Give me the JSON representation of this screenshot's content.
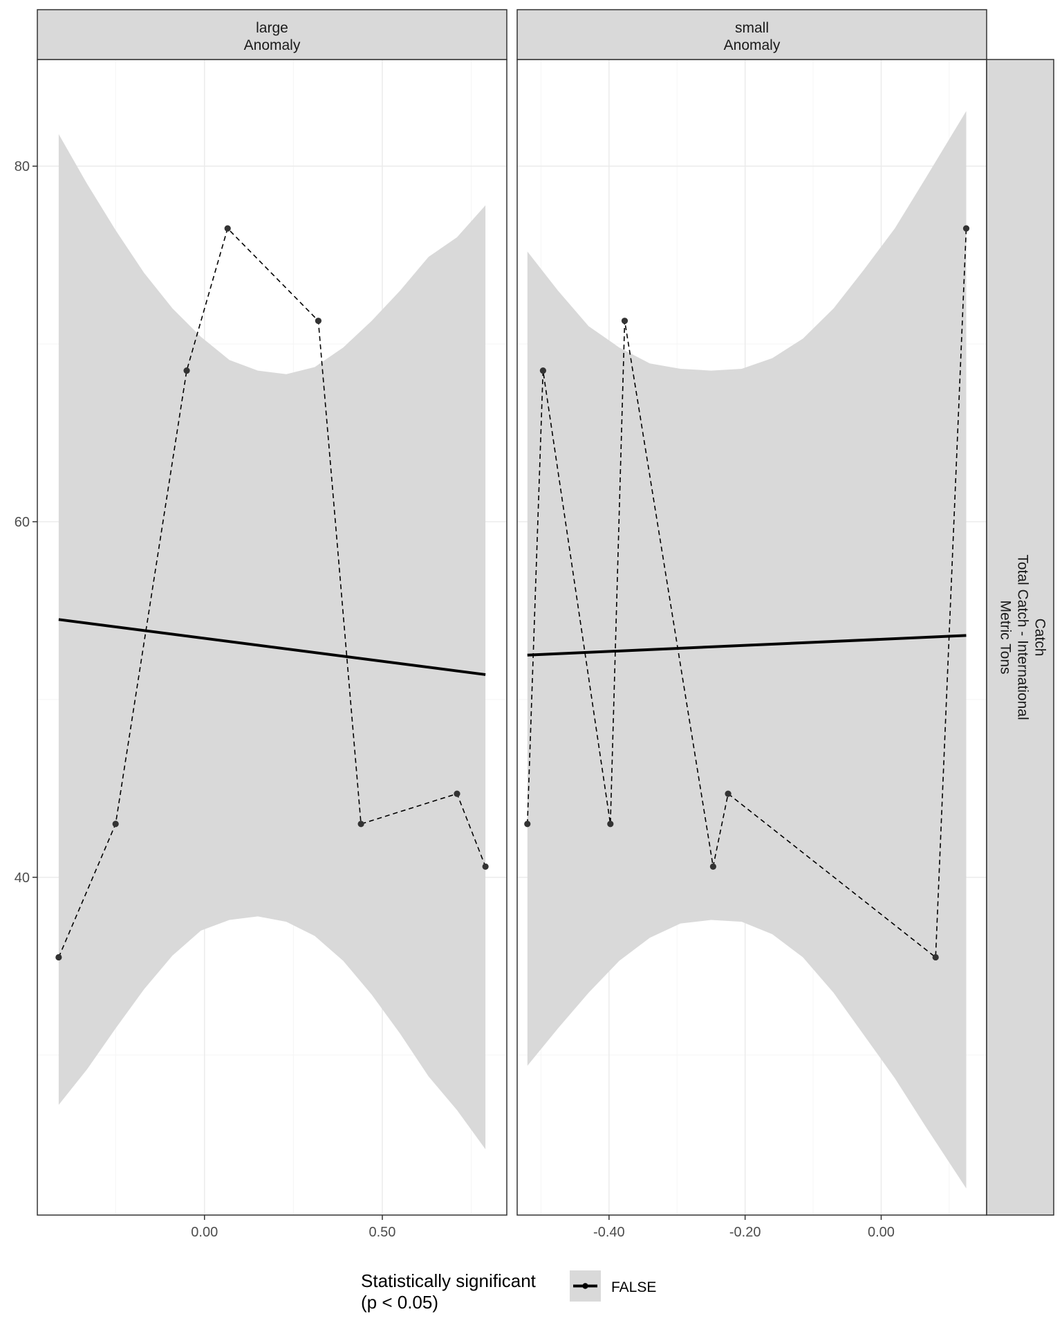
{
  "chart_data": {
    "type": "line",
    "facet_strip_label": "Catch\nTotal Catch - International\nMetric Tons",
    "y_ticks": [
      "40",
      "60",
      "80"
    ],
    "ylim": [
      21,
      86
    ],
    "panels": [
      {
        "strip_label": "large\nAnomaly",
        "xlim": [
          -0.47,
          0.85
        ],
        "x_ticks": [
          "0.00",
          "0.50"
        ],
        "x_tick_values": [
          0.0,
          0.5
        ],
        "points": [
          {
            "x": -0.41,
            "y": 35.5
          },
          {
            "x": -0.25,
            "y": 43.0
          },
          {
            "x": -0.05,
            "y": 68.5
          },
          {
            "x": 0.065,
            "y": 76.5
          },
          {
            "x": 0.32,
            "y": 71.3
          },
          {
            "x": 0.44,
            "y": 43.0
          },
          {
            "x": 0.71,
            "y": 44.7
          },
          {
            "x": 0.79,
            "y": 40.6
          }
        ],
        "fit": {
          "x": [
            -0.41,
            0.79
          ],
          "y": [
            54.5,
            51.4
          ]
        },
        "ci_upper": [
          {
            "x": -0.41,
            "y": 81.8
          },
          {
            "x": -0.33,
            "y": 79.0
          },
          {
            "x": -0.25,
            "y": 76.4
          },
          {
            "x": -0.17,
            "y": 74.0
          },
          {
            "x": -0.09,
            "y": 72.0
          },
          {
            "x": -0.01,
            "y": 70.4
          },
          {
            "x": 0.07,
            "y": 69.1
          },
          {
            "x": 0.15,
            "y": 68.5
          },
          {
            "x": 0.23,
            "y": 68.3
          },
          {
            "x": 0.31,
            "y": 68.7
          },
          {
            "x": 0.39,
            "y": 69.8
          },
          {
            "x": 0.47,
            "y": 71.3
          },
          {
            "x": 0.55,
            "y": 73.0
          },
          {
            "x": 0.63,
            "y": 74.9
          },
          {
            "x": 0.71,
            "y": 76.0
          },
          {
            "x": 0.79,
            "y": 77.8
          }
        ],
        "ci_lower": [
          {
            "x": -0.41,
            "y": 27.2
          },
          {
            "x": -0.33,
            "y": 29.2
          },
          {
            "x": -0.25,
            "y": 31.5
          },
          {
            "x": -0.17,
            "y": 33.7
          },
          {
            "x": -0.09,
            "y": 35.6
          },
          {
            "x": -0.01,
            "y": 37.0
          },
          {
            "x": 0.07,
            "y": 37.6
          },
          {
            "x": 0.15,
            "y": 37.8
          },
          {
            "x": 0.23,
            "y": 37.5
          },
          {
            "x": 0.31,
            "y": 36.7
          },
          {
            "x": 0.39,
            "y": 35.3
          },
          {
            "x": 0.47,
            "y": 33.4
          },
          {
            "x": 0.55,
            "y": 31.2
          },
          {
            "x": 0.63,
            "y": 28.8
          },
          {
            "x": 0.71,
            "y": 26.9
          },
          {
            "x": 0.79,
            "y": 24.7
          }
        ]
      },
      {
        "strip_label": "small\nAnomaly",
        "xlim": [
          -0.535,
          0.155
        ],
        "x_ticks": [
          "-0.40",
          "-0.20",
          "0.00"
        ],
        "x_tick_values": [
          -0.4,
          -0.2,
          0.0
        ],
        "points": [
          {
            "x": -0.52,
            "y": 43.0
          },
          {
            "x": -0.497,
            "y": 68.5
          },
          {
            "x": -0.398,
            "y": 43.0
          },
          {
            "x": -0.377,
            "y": 71.3
          },
          {
            "x": -0.247,
            "y": 40.6
          },
          {
            "x": -0.225,
            "y": 44.7
          },
          {
            "x": 0.08,
            "y": 35.5
          },
          {
            "x": 0.125,
            "y": 76.5
          }
        ],
        "fit": {
          "x": [
            -0.52,
            0.125
          ],
          "y": [
            52.5,
            53.6
          ]
        },
        "ci_upper": [
          {
            "x": -0.52,
            "y": 75.2
          },
          {
            "x": -0.475,
            "y": 73.0
          },
          {
            "x": -0.43,
            "y": 71.0
          },
          {
            "x": -0.385,
            "y": 69.8
          },
          {
            "x": -0.34,
            "y": 68.9
          },
          {
            "x": -0.295,
            "y": 68.6
          },
          {
            "x": -0.25,
            "y": 68.5
          },
          {
            "x": -0.205,
            "y": 68.6
          },
          {
            "x": -0.16,
            "y": 69.2
          },
          {
            "x": -0.115,
            "y": 70.3
          },
          {
            "x": -0.07,
            "y": 72.0
          },
          {
            "x": -0.025,
            "y": 74.2
          },
          {
            "x": 0.02,
            "y": 76.5
          },
          {
            "x": 0.065,
            "y": 79.3
          },
          {
            "x": 0.125,
            "y": 83.1
          }
        ],
        "ci_lower": [
          {
            "x": -0.52,
            "y": 29.4
          },
          {
            "x": -0.475,
            "y": 31.5
          },
          {
            "x": -0.43,
            "y": 33.5
          },
          {
            "x": -0.385,
            "y": 35.3
          },
          {
            "x": -0.34,
            "y": 36.6
          },
          {
            "x": -0.295,
            "y": 37.4
          },
          {
            "x": -0.25,
            "y": 37.6
          },
          {
            "x": -0.205,
            "y": 37.5
          },
          {
            "x": -0.16,
            "y": 36.8
          },
          {
            "x": -0.115,
            "y": 35.5
          },
          {
            "x": -0.07,
            "y": 33.5
          },
          {
            "x": -0.025,
            "y": 31.1
          },
          {
            "x": 0.02,
            "y": 28.7
          },
          {
            "x": 0.065,
            "y": 26.0
          },
          {
            "x": 0.125,
            "y": 22.5
          }
        ]
      }
    ],
    "legend": {
      "title": "Statistically significant\n(p < 0.05)",
      "items": [
        {
          "label": "FALSE"
        }
      ],
      "placement": "bottom"
    },
    "colors": {
      "ribbon": "#d9d9d9",
      "strip": "#d9d9d9",
      "line": "#000000",
      "points": "#333333",
      "grid_major": "#ebebeb",
      "grid_minor": "#f5f5f5"
    }
  }
}
